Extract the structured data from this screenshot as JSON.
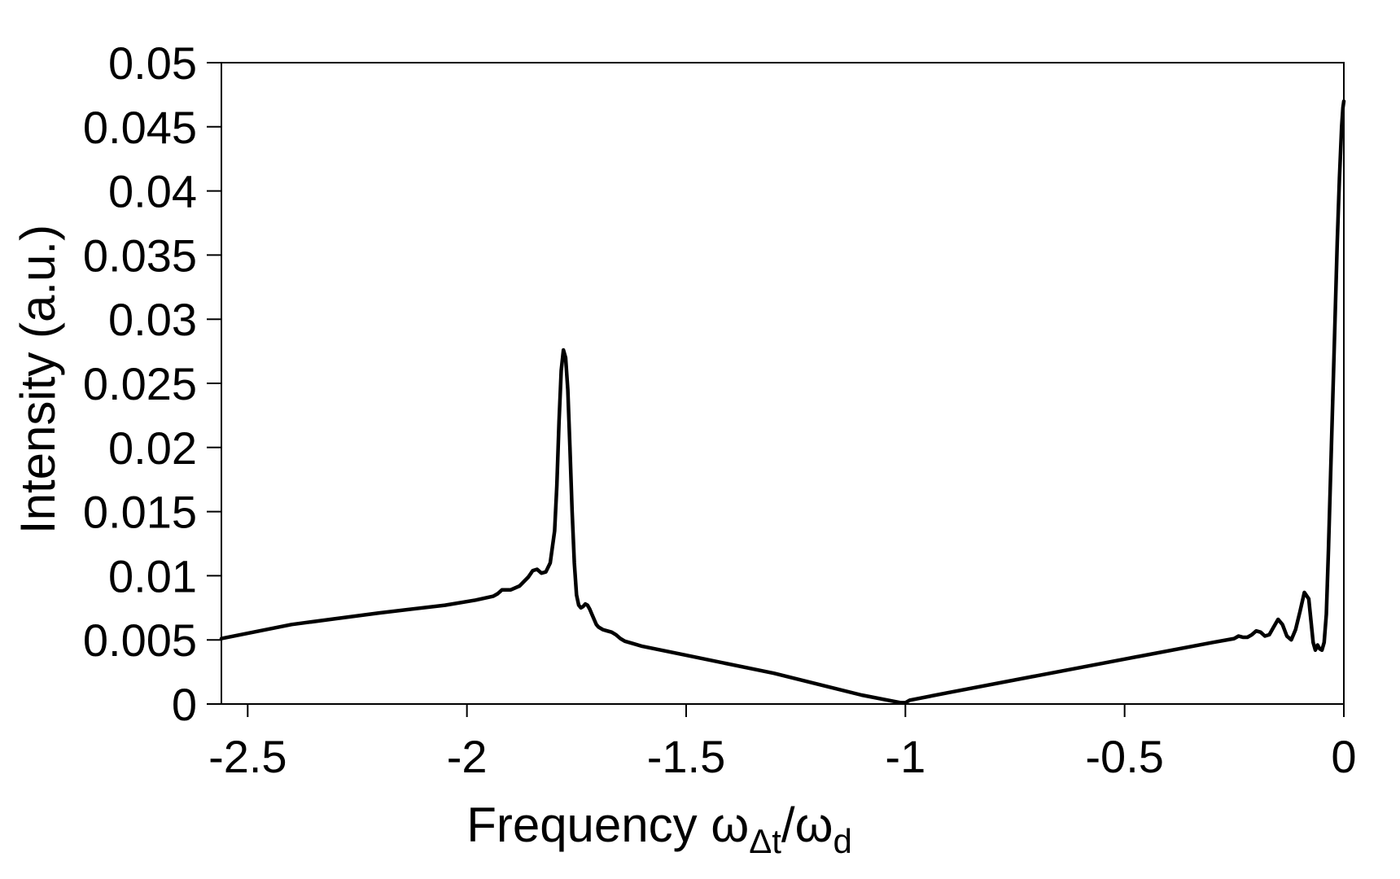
{
  "chart_data": {
    "type": "line",
    "title": "",
    "xlabel": {
      "text": "Frequency ω",
      "sub1": "Δt",
      "mid": "/ω",
      "sub2": "d"
    },
    "ylabel": "Intensity (a.u.)",
    "xlim": [
      -2.56,
      0
    ],
    "ylim": [
      0,
      0.05
    ],
    "xticks": [
      -2.5,
      -2,
      -1.5,
      -1,
      -0.5,
      0
    ],
    "xtick_labels": [
      "-2.5",
      "-2",
      "-1.5",
      "-1",
      "-0.5",
      "0"
    ],
    "yticks": [
      0,
      0.005,
      0.01,
      0.015,
      0.02,
      0.025,
      0.03,
      0.035,
      0.04,
      0.045,
      0.05
    ],
    "ytick_labels": [
      "0",
      "0.005",
      "0.01",
      "0.015",
      "0.02",
      "0.025",
      "0.03",
      "0.035",
      "0.04",
      "0.045",
      "0.05"
    ],
    "grid": false,
    "line_color": "#000000",
    "series": [
      {
        "x": [
          -2.56,
          -2.4,
          -2.2,
          -2.05,
          -1.98,
          -1.94,
          -1.93,
          -1.92,
          -1.9,
          -1.88,
          -1.86,
          -1.85,
          -1.84,
          -1.83,
          -1.82,
          -1.81,
          -1.8,
          -1.795,
          -1.79,
          -1.785,
          -1.78,
          -1.775,
          -1.77,
          -1.765,
          -1.76,
          -1.755,
          -1.75,
          -1.745,
          -1.74,
          -1.735,
          -1.73,
          -1.725,
          -1.72,
          -1.715,
          -1.71,
          -1.705,
          -1.7,
          -1.69,
          -1.68,
          -1.67,
          -1.66,
          -1.65,
          -1.64,
          -1.62,
          -1.6,
          -1.5,
          -1.3,
          -1.1,
          -1.01,
          -1.0,
          -0.99,
          -0.9,
          -0.7,
          -0.5,
          -0.3,
          -0.25,
          -0.24,
          -0.23,
          -0.22,
          -0.21,
          -0.2,
          -0.19,
          -0.18,
          -0.17,
          -0.16,
          -0.15,
          -0.14,
          -0.13,
          -0.12,
          -0.11,
          -0.1,
          -0.09,
          -0.08,
          -0.075,
          -0.07,
          -0.065,
          -0.06,
          -0.055,
          -0.05,
          -0.045,
          -0.04,
          -0.035,
          -0.03,
          -0.025,
          -0.02,
          -0.015,
          -0.01,
          -0.005,
          -0.002,
          0
        ],
        "y": [
          0.0051,
          0.0062,
          0.0071,
          0.0077,
          0.0081,
          0.0084,
          0.0086,
          0.0089,
          0.0089,
          0.0092,
          0.0099,
          0.0104,
          0.0105,
          0.0102,
          0.0103,
          0.011,
          0.0135,
          0.017,
          0.022,
          0.026,
          0.0276,
          0.027,
          0.0245,
          0.02,
          0.015,
          0.011,
          0.0085,
          0.0077,
          0.0075,
          0.0076,
          0.0078,
          0.0077,
          0.0074,
          0.007,
          0.0066,
          0.0062,
          0.006,
          0.0058,
          0.0057,
          0.0056,
          0.0054,
          0.0051,
          0.0049,
          0.0047,
          0.0045,
          0.0038,
          0.0024,
          0.0007,
          0.0001,
          0.0001,
          0.0003,
          0.0009,
          0.0022,
          0.0035,
          0.0048,
          0.0051,
          0.0053,
          0.0052,
          0.0052,
          0.0054,
          0.0057,
          0.0056,
          0.0053,
          0.0054,
          0.006,
          0.0066,
          0.0062,
          0.0053,
          0.005,
          0.0058,
          0.0072,
          0.0087,
          0.0082,
          0.0065,
          0.0048,
          0.0042,
          0.0046,
          0.0043,
          0.0042,
          0.0048,
          0.007,
          0.012,
          0.018,
          0.024,
          0.03,
          0.036,
          0.041,
          0.045,
          0.0465,
          0.047
        ]
      }
    ]
  }
}
